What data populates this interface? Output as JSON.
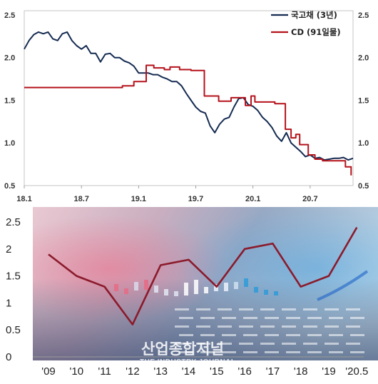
{
  "chart_data": [
    {
      "type": "line",
      "x_ticks": [
        "18.1",
        "18.7",
        "19.1",
        "19.7",
        "20.1",
        "20.7"
      ],
      "y_ticks": [
        "0.5",
        "1.0",
        "1.5",
        "2.0",
        "2.5"
      ],
      "ylim": [
        0.5,
        2.55
      ],
      "xlim": [
        0,
        34.5
      ],
      "legend_position": "top-right",
      "series": [
        {
          "name": "국고채 (3년)",
          "color": "#152b52",
          "x": [
            0,
            0.5,
            1,
            1.5,
            2,
            2.5,
            3,
            3.5,
            4,
            4.5,
            5,
            5.5,
            6,
            6.5,
            7,
            7.5,
            8,
            8.5,
            9,
            9.5,
            10,
            10.5,
            11,
            11.5,
            12,
            12.5,
            13,
            13.5,
            14,
            14.5,
            15,
            15.5,
            16,
            16.5,
            17,
            17.5,
            18,
            18.5,
            19,
            19.5,
            20,
            20.5,
            21,
            21.5,
            22,
            22.5,
            23,
            23.5,
            24,
            24.5,
            25,
            25.5,
            26,
            26.5,
            27,
            27.5,
            28,
            28.5,
            29,
            29.5,
            30,
            30.5,
            31,
            31.5,
            32,
            32.5,
            33,
            33.5,
            34,
            34.5
          ],
          "values": [
            2.1,
            2.2,
            2.27,
            2.3,
            2.28,
            2.3,
            2.22,
            2.2,
            2.28,
            2.3,
            2.2,
            2.14,
            2.1,
            2.14,
            2.05,
            2.05,
            1.95,
            2.04,
            2.05,
            2.0,
            2.0,
            1.96,
            1.94,
            1.9,
            1.82,
            1.82,
            1.82,
            1.8,
            1.8,
            1.77,
            1.75,
            1.72,
            1.72,
            1.67,
            1.58,
            1.5,
            1.42,
            1.37,
            1.35,
            1.2,
            1.12,
            1.22,
            1.28,
            1.3,
            1.42,
            1.52,
            1.53,
            1.45,
            1.43,
            1.38,
            1.3,
            1.25,
            1.18,
            1.08,
            1.02,
            1.12,
            1.0,
            0.95,
            0.9,
            0.84,
            0.86,
            0.82,
            0.83,
            0.8,
            0.81,
            0.82,
            0.82,
            0.83,
            0.8,
            0.82
          ]
        },
        {
          "name": "CD (91일물)",
          "color": "#b5121b",
          "x": [
            0,
            10.3,
            10.3,
            11.5,
            11.5,
            12.8,
            12.8,
            13.6,
            13.6,
            14.7,
            14.7,
            15.3,
            15.3,
            16.3,
            16.3,
            17.5,
            17.5,
            18.9,
            18.9,
            20.4,
            20.4,
            21.7,
            21.7,
            23.2,
            23.2,
            23.8,
            23.8,
            24.2,
            24.2,
            26.3,
            26.3,
            27.4,
            27.4,
            28.0,
            28.0,
            28.5,
            28.5,
            28.9,
            28.9,
            29.8,
            29.8,
            30.5,
            30.5,
            31.3,
            31.3,
            33.7,
            33.7,
            34.3,
            34.3
          ],
          "values": [
            1.65,
            1.65,
            1.67,
            1.67,
            1.72,
            1.72,
            1.91,
            1.91,
            1.88,
            1.88,
            1.86,
            1.86,
            1.89,
            1.89,
            1.86,
            1.86,
            1.85,
            1.85,
            1.55,
            1.55,
            1.49,
            1.49,
            1.53,
            1.53,
            1.44,
            1.44,
            1.55,
            1.55,
            1.48,
            1.48,
            1.46,
            1.46,
            1.16,
            1.16,
            1.06,
            1.06,
            1.1,
            1.1,
            0.98,
            0.98,
            0.86,
            0.86,
            0.81,
            0.81,
            0.79,
            0.79,
            0.72,
            0.72,
            0.62
          ]
        }
      ]
    },
    {
      "type": "line",
      "categories": [
        "'09",
        "'10",
        "'11",
        "'12",
        "'13",
        "'14",
        "'15",
        "'16",
        "'17",
        "'18",
        "'19",
        "'20.5"
      ],
      "y_ticks": [
        "0",
        "0.5",
        "1",
        "1.5",
        "2",
        "2.5"
      ],
      "ylim": [
        0,
        2.5
      ],
      "series": [
        {
          "color": "#8b1a2b",
          "values": [
            1.9,
            1.5,
            1.3,
            0.6,
            1.7,
            1.8,
            1.3,
            2.0,
            2.1,
            1.3,
            1.5,
            2.4
          ]
        }
      ]
    }
  ],
  "watermark": {
    "main": "산업종합저널",
    "sub": "THE INDUSTRY JOURNAL"
  }
}
